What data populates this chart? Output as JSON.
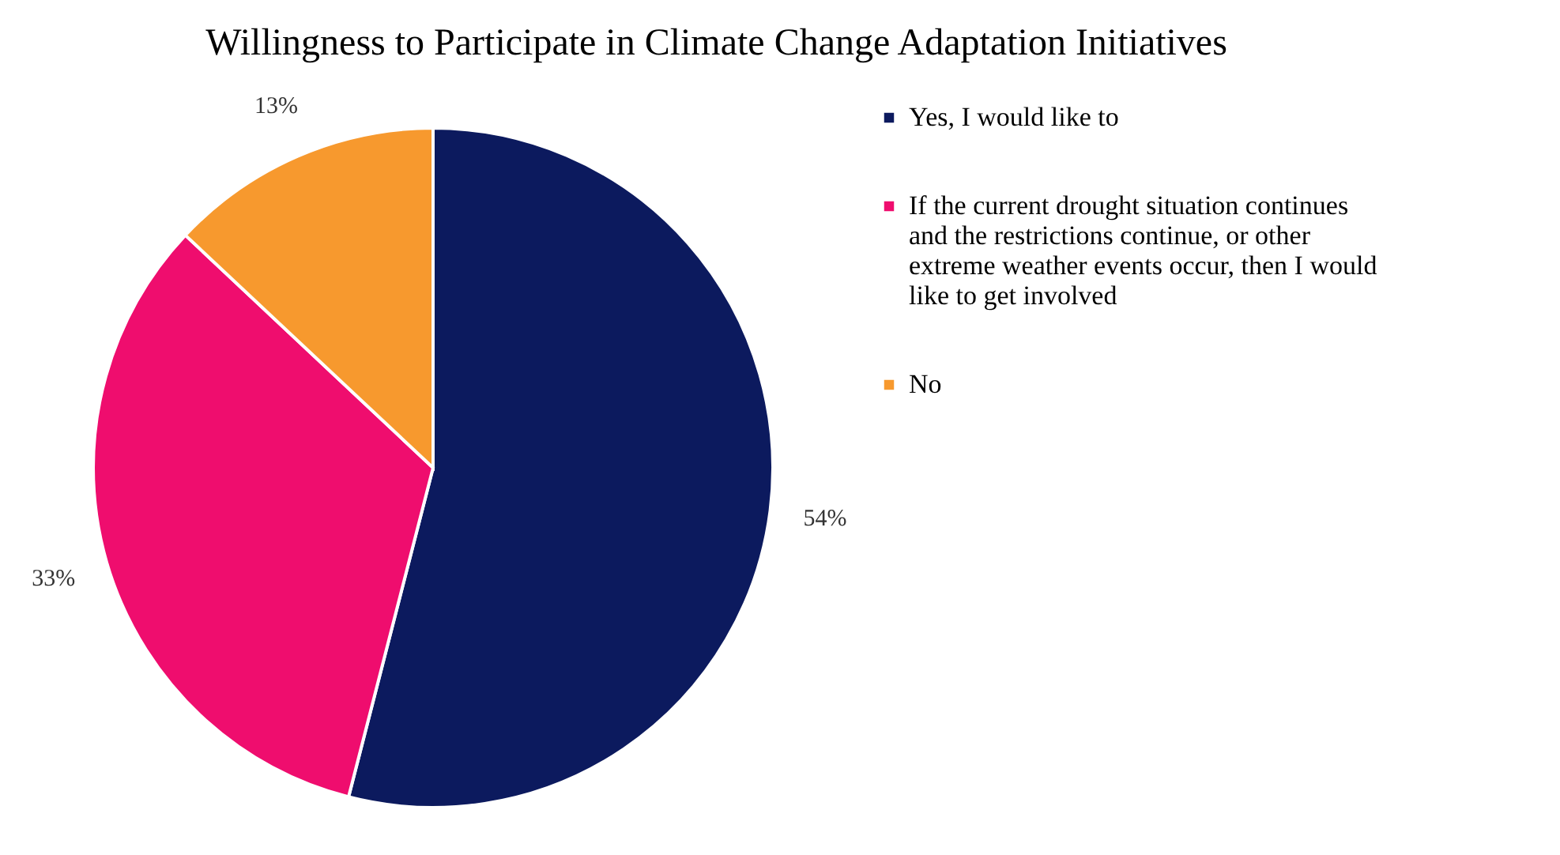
{
  "chart_data": {
    "type": "pie",
    "title": "Willingness to Participate in Climate Change Adaptation Initiatives",
    "categories": [
      "Yes, I would like to",
      "If the current drought situation continues and the restrictions continue, or other extreme weather events occur, then I would like to get involved",
      "No"
    ],
    "values": [
      54,
      33,
      13
    ],
    "colors": [
      "#0c1a5e",
      "#ef0d6e",
      "#f7992e"
    ],
    "value_labels": [
      "54%",
      "33%",
      "13%"
    ],
    "legend": "right"
  }
}
